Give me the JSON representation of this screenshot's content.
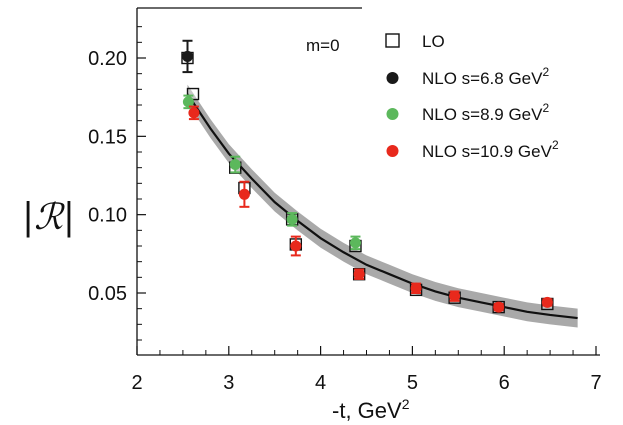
{
  "chart_data": {
    "type": "scatter",
    "xlabel": "-t, GeV",
    "xlabel_sup": "2",
    "ylabel": "|ℛ|",
    "xlim": [
      2,
      7
    ],
    "ylim": [
      0.0,
      0.225
    ],
    "x_ticks": [
      "2",
      "3",
      "4",
      "5",
      "6",
      "7"
    ],
    "y_ticks": [
      "0.05",
      "0.10",
      "0.15",
      "0.20"
    ],
    "annotation": "m=0",
    "grid": false,
    "legend_position": "top-right",
    "curve": {
      "x": [
        2.55,
        2.8,
        3.0,
        3.25,
        3.5,
        3.75,
        4.0,
        4.25,
        4.5,
        4.75,
        5.0,
        5.25,
        5.5,
        5.75,
        6.0,
        6.25,
        6.5,
        6.8
      ],
      "y": [
        0.177,
        0.155,
        0.139,
        0.123,
        0.108,
        0.096,
        0.085,
        0.076,
        0.068,
        0.062,
        0.056,
        0.051,
        0.047,
        0.044,
        0.041,
        0.038,
        0.036,
        0.034
      ],
      "band": 0.006,
      "color": "#111111",
      "band_color": "#9a9a9a"
    },
    "series": [
      {
        "name": "LO",
        "marker": "open-square",
        "color": "#111111",
        "x": [
          2.55,
          2.61,
          3.07,
          3.17,
          3.69,
          3.73,
          4.38,
          4.42,
          5.04,
          5.46,
          5.94,
          6.47
        ],
        "y": [
          0.2,
          0.177,
          0.13,
          0.117,
          0.097,
          0.081,
          0.08,
          0.062,
          0.052,
          0.047,
          0.041,
          0.043
        ],
        "err": [
          0,
          0,
          0,
          0,
          0,
          0,
          0,
          0,
          0,
          0,
          0,
          0
        ]
      },
      {
        "name": "NLO s=6.8 GeV",
        "name_sup": "2",
        "marker": "filled-circle",
        "color": "#1a1a1a",
        "x": [
          2.55
        ],
        "y": [
          0.201
        ],
        "err": [
          0.01
        ]
      },
      {
        "name": "NLO s=8.9 GeV",
        "name_sup": "2",
        "marker": "filled-circle",
        "color": "#5cb85c",
        "x": [
          2.56,
          3.07,
          3.69,
          4.38
        ],
        "y": [
          0.172,
          0.132,
          0.097,
          0.082
        ],
        "err": [
          0.004,
          0.005,
          0.004,
          0.004
        ]
      },
      {
        "name": "NLO s=10.9 GeV",
        "name_sup": "2",
        "marker": "filled-circle",
        "color": "#e8291c",
        "x": [
          2.62,
          3.17,
          3.73,
          4.42,
          5.04,
          5.46,
          5.94,
          6.47
        ],
        "y": [
          0.165,
          0.113,
          0.08,
          0.062,
          0.053,
          0.048,
          0.041,
          0.044
        ],
        "err": [
          0.004,
          0.008,
          0.006,
          0.003,
          0.003,
          0.003,
          0.002,
          0.002
        ]
      }
    ]
  }
}
